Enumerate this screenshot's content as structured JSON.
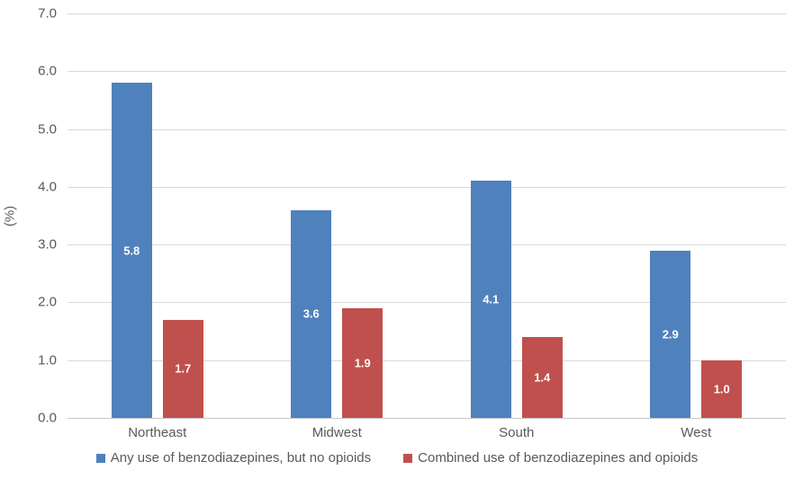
{
  "chart_data": {
    "type": "bar",
    "categories": [
      "Northeast",
      "Midwest",
      "South",
      "West"
    ],
    "series": [
      {
        "name": "Any use of benzodiazepines, but no opioids",
        "color": "#4F81BD",
        "values": [
          5.8,
          3.6,
          4.1,
          2.9
        ]
      },
      {
        "name": "Combined use of benzodiazepines and opioids",
        "color": "#C0504D",
        "values": [
          1.7,
          1.9,
          1.4,
          1.0
        ]
      }
    ],
    "title": "",
    "xlabel": "",
    "ylabel": "(%)",
    "ylim": [
      0,
      7
    ],
    "ytick_step": 1,
    "ytick_labels": [
      "0.0",
      "1.0",
      "2.0",
      "3.0",
      "4.0",
      "5.0",
      "6.0",
      "7.0"
    ],
    "grid": true,
    "legend_position": "bottom",
    "value_labels_inside_bars": true,
    "value_label_color": "#FFFFFF"
  },
  "colors": {
    "background": "#FFFFFF",
    "gridline": "#D9D9D9",
    "axis_line": "#C6C6C6",
    "axis_text": "#595959"
  }
}
